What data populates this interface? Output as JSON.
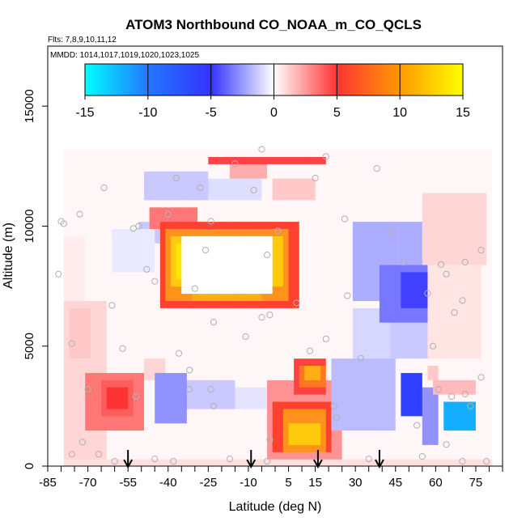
{
  "chart_data": {
    "type": "heatmap",
    "title": "ATOM3 Northbound CO_NOAA_m_CO_QCLS",
    "annotations": [
      "Flts: 7,8,9,10,11,12",
      "MMDD: 1014,1017,1019,1020,1023,1025"
    ],
    "xlabel": "Latitude (deg N)",
    "ylabel": "Altitude (m)",
    "xlim": [
      -85,
      85
    ],
    "ylim": [
      0,
      17500
    ],
    "x_ticks": [
      -85,
      -70,
      -55,
      -40,
      -25,
      -10,
      5,
      15,
      30,
      45,
      60,
      75
    ],
    "y_ticks": [
      0,
      5000,
      10000,
      15000
    ],
    "colorbar": {
      "ticks": [
        -15,
        -10,
        -5,
        0,
        5,
        10,
        15
      ],
      "range": [
        -15,
        15
      ],
      "colors": [
        "#00ffff",
        "#3333ff",
        "#ffffff",
        "#ff3333",
        "#ffff00"
      ]
    },
    "grid": false,
    "cells": [
      {
        "lat": [
          -78,
          -62
        ],
        "alt": [
          400,
          7000
        ],
        "v": 1.5
      },
      {
        "lat": [
          -78,
          -70
        ],
        "alt": [
          7000,
          9500
        ],
        "v": 0.7
      },
      {
        "lat": [
          -76,
          -68
        ],
        "alt": [
          4500,
          6500
        ],
        "v": 2
      },
      {
        "lat": [
          -70,
          -48
        ],
        "alt": [
          1500,
          4000
        ],
        "v": 5
      },
      {
        "lat": [
          -64,
          -52
        ],
        "alt": [
          2000,
          3600
        ],
        "v": 6
      },
      {
        "lat": [
          -62,
          -54
        ],
        "alt": [
          2500,
          3300
        ],
        "v": 7.5
      },
      {
        "lat": [
          -48,
          -40
        ],
        "alt": [
          3500,
          4500
        ],
        "v": 1.5
      },
      {
        "lat": [
          -44,
          -32
        ],
        "alt": [
          1800,
          3800
        ],
        "v": -4
      },
      {
        "lat": [
          -32,
          -15
        ],
        "alt": [
          2300,
          3600
        ],
        "v": -2
      },
      {
        "lat": [
          -15,
          0
        ],
        "alt": [
          2500,
          3300
        ],
        "v": -1
      },
      {
        "lat": [
          -50,
          -40
        ],
        "alt": [
          9300,
          10300
        ],
        "v": -2
      },
      {
        "lat": [
          -47,
          -28
        ],
        "alt": [
          10000,
          10800
        ],
        "v": 5
      },
      {
        "lat": [
          -60,
          -45
        ],
        "alt": [
          8000,
          10000
        ],
        "v": -0.8
      },
      {
        "lat": [
          -48,
          -25
        ],
        "alt": [
          11000,
          12200
        ],
        "v": -2
      },
      {
        "lat": [
          -25,
          -5
        ],
        "alt": [
          11000,
          12000
        ],
        "v": -1.2
      },
      {
        "lat": [
          0,
          15
        ],
        "alt": [
          11000,
          12000
        ],
        "v": 2
      },
      {
        "lat": [
          -25,
          20
        ],
        "alt": [
          12500,
          13000
        ],
        "v": 7
      },
      {
        "lat": [
          -16,
          -3
        ],
        "alt": [
          12000,
          12500
        ],
        "v": 3
      },
      {
        "lat": [
          -43,
          9
        ],
        "alt": [
          6500,
          10200
        ],
        "v": 8
      },
      {
        "lat": [
          -40,
          6
        ],
        "alt": [
          7000,
          9800
        ],
        "v": 11
      },
      {
        "lat": [
          -38,
          3
        ],
        "alt": [
          7500,
          9500
        ],
        "v": 13
      },
      {
        "lat": [
          -36,
          0
        ],
        "alt": [
          7800,
          9300
        ],
        "v": 14
      },
      {
        "lat": [
          -30,
          -5
        ],
        "alt": [
          6800,
          7300
        ],
        "v": 12
      },
      {
        "lat": [
          -35,
          0
        ],
        "alt": [
          7300,
          9600
        ],
        "v": 0
      },
      {
        "lat": [
          -3,
          25
        ],
        "alt": [
          400,
          3500
        ],
        "v": 4
      },
      {
        "lat": [
          0,
          22
        ],
        "alt": [
          500,
          2800
        ],
        "v": 8
      },
      {
        "lat": [
          3,
          20
        ],
        "alt": [
          700,
          2300
        ],
        "v": 11
      },
      {
        "lat": [
          6,
          18
        ],
        "alt": [
          800,
          1800
        ],
        "v": 13
      },
      {
        "lat": [
          8,
          20
        ],
        "alt": [
          3000,
          4500
        ],
        "v": 7
      },
      {
        "lat": [
          10,
          19
        ],
        "alt": [
          3300,
          4300
        ],
        "v": 10
      },
      {
        "lat": [
          12,
          18
        ],
        "alt": [
          3500,
          4100
        ],
        "v": 12
      },
      {
        "lat": [
          21,
          45
        ],
        "alt": [
          1500,
          4500
        ],
        "v": -2.5
      },
      {
        "lat": [
          30,
          45
        ],
        "alt": [
          4500,
          6500
        ],
        "v": -1.5
      },
      {
        "lat": [
          30,
          62
        ],
        "alt": [
          7000,
          10200
        ],
        "v": -3
      },
      {
        "lat": [
          40,
          62
        ],
        "alt": [
          6000,
          8500
        ],
        "v": -5
      },
      {
        "lat": [
          48,
          60
        ],
        "alt": [
          6500,
          8000
        ],
        "v": -7
      },
      {
        "lat": [
          44,
          62
        ],
        "alt": [
          4500,
          6000
        ],
        "v": -2
      },
      {
        "lat": [
          48,
          55
        ],
        "alt": [
          2000,
          4000
        ],
        "v": -8
      },
      {
        "lat": [
          55,
          62
        ],
        "alt": [
          800,
          3200
        ],
        "v": -4
      },
      {
        "lat": [
          63,
          75
        ],
        "alt": [
          1400,
          2600
        ],
        "v": -12
      },
      {
        "lat": [
          60,
          76
        ],
        "alt": [
          3000,
          3500
        ],
        "v": 2.5
      },
      {
        "lat": [
          57,
          62
        ],
        "alt": [
          3500,
          4200
        ],
        "v": 2
      },
      {
        "lat": [
          64,
          68
        ],
        "alt": [
          7000,
          8700
        ],
        "v": 4
      },
      {
        "lat": [
          55,
          80
        ],
        "alt": [
          8500,
          11500
        ],
        "v": 1.5
      },
      {
        "lat": [
          58,
          78
        ],
        "alt": [
          4500,
          8500
        ],
        "v": 1
      },
      {
        "lat": [
          -80,
          82
        ],
        "alt": [
          0,
          400
        ],
        "v": 1.2
      }
    ],
    "blank_regions": [
      {
        "lat": [
          -85,
          -79
        ],
        "alt": [
          0,
          17500
        ]
      },
      {
        "lat": [
          82,
          85
        ],
        "alt": [
          0,
          17500
        ]
      },
      {
        "lat": [
          -85,
          85
        ],
        "alt": [
          13200,
          17500
        ]
      }
    ],
    "observation_points": [
      [
        -80,
        10200
      ],
      [
        -79,
        10100
      ],
      [
        -81,
        8000
      ],
      [
        -76,
        5100
      ],
      [
        -73,
        10500
      ],
      [
        -72,
        1000
      ],
      [
        -76,
        500
      ],
      [
        -66,
        500
      ],
      [
        -70,
        3200
      ],
      [
        -64,
        11600
      ],
      [
        -61,
        6700
      ],
      [
        -53,
        9900
      ],
      [
        -51,
        10000
      ],
      [
        -48,
        8200
      ],
      [
        -45,
        7700
      ],
      [
        -52,
        2900
      ],
      [
        -45,
        300
      ],
      [
        -40,
        10500
      ],
      [
        -36,
        4700
      ],
      [
        -32,
        4000
      ],
      [
        -32,
        3200
      ],
      [
        -24,
        3200
      ],
      [
        -24,
        10200
      ],
      [
        -28,
        11600
      ],
      [
        -23,
        6000
      ],
      [
        -30,
        7400
      ],
      [
        -37,
        12000
      ],
      [
        -23,
        2500
      ],
      [
        -11,
        5400
      ],
      [
        -5,
        6200
      ],
      [
        -3,
        8800
      ],
      [
        -2,
        6300
      ],
      [
        -5,
        13200
      ],
      [
        1,
        9800
      ],
      [
        13,
        4800
      ],
      [
        19,
        5300
      ],
      [
        26,
        10300
      ],
      [
        22,
        2500
      ],
      [
        32,
        4500
      ],
      [
        38,
        12400
      ],
      [
        43,
        9800
      ],
      [
        48,
        8500
      ],
      [
        57,
        7200
      ],
      [
        62,
        8400
      ],
      [
        64,
        8000
      ],
      [
        70,
        6900
      ],
      [
        71,
        8500
      ],
      [
        67,
        6400
      ],
      [
        77,
        9000
      ],
      [
        77,
        3700
      ],
      [
        61,
        3200
      ],
      [
        66,
        2900
      ],
      [
        71,
        3000
      ],
      [
        53,
        1700
      ],
      [
        64,
        900
      ],
      [
        70,
        200
      ],
      [
        73,
        2500
      ],
      [
        79,
        200
      ],
      [
        -17,
        300
      ],
      [
        23,
        2000
      ],
      [
        -15,
        12600
      ],
      [
        -8,
        11500
      ],
      [
        -26,
        9000
      ],
      [
        15,
        12000
      ],
      [
        19,
        12900
      ],
      [
        -2,
        1100
      ],
      [
        8,
        6800
      ],
      [
        27,
        7100
      ],
      [
        -57,
        4900
      ],
      [
        -60,
        200
      ],
      [
        -38,
        200
      ],
      [
        -3,
        200
      ],
      [
        35,
        300
      ],
      [
        55,
        400
      ],
      [
        59,
        5000
      ]
    ],
    "arrows_lat": [
      -55,
      -9,
      16,
      39
    ]
  }
}
